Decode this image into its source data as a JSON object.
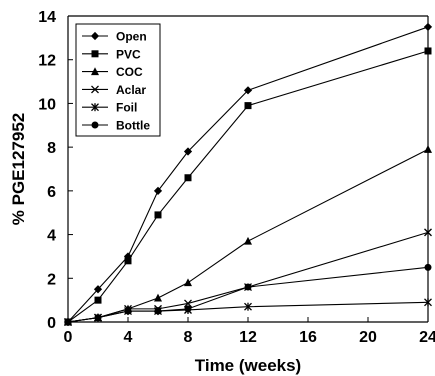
{
  "chart_data": {
    "type": "line",
    "xlabel": "Time (weeks)",
    "ylabel": "% PGE127952",
    "xlim": [
      0,
      24
    ],
    "ylim": [
      0,
      14
    ],
    "xticks": [
      0,
      4,
      8,
      12,
      16,
      20,
      24
    ],
    "yticks": [
      0,
      2,
      4,
      6,
      8,
      10,
      12,
      14
    ],
    "grid": false,
    "legend_position": "top-left",
    "line_color": "#000000",
    "x": [
      0,
      2,
      4,
      6,
      8,
      12,
      24
    ],
    "series": [
      {
        "name": "Open",
        "marker": "diamond",
        "values": [
          0,
          1.5,
          3.0,
          6.0,
          7.8,
          10.6,
          13.5
        ]
      },
      {
        "name": "PVC",
        "marker": "square",
        "values": [
          0,
          1.0,
          2.8,
          4.9,
          6.6,
          9.9,
          12.4
        ]
      },
      {
        "name": "COC",
        "marker": "triangle",
        "values": [
          0,
          0.2,
          0.6,
          1.1,
          1.8,
          3.7,
          7.9
        ]
      },
      {
        "name": "Aclar",
        "marker": "x",
        "values": [
          0,
          0.2,
          0.6,
          0.6,
          0.85,
          1.6,
          4.1
        ]
      },
      {
        "name": "Foil",
        "marker": "star",
        "values": [
          0,
          0.2,
          0.5,
          0.5,
          0.55,
          0.7,
          0.9
        ]
      },
      {
        "name": "Bottle",
        "marker": "circle",
        "values": [
          0,
          0.2,
          0.5,
          0.5,
          0.6,
          1.6,
          2.5
        ]
      }
    ]
  }
}
